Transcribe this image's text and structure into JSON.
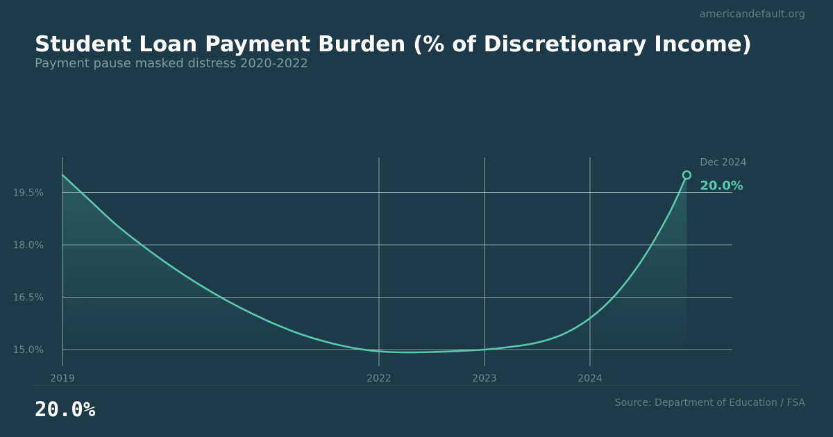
{
  "header": {
    "site": "americandefault.org",
    "title": "Student Loan Payment Burden (% of Discretionary Income)",
    "subtitle": "Payment pause masked distress 2020-2022"
  },
  "footer": {
    "big_value": "20.0%",
    "source": "Source: Department of Education / FSA"
  },
  "colors": {
    "background": "#1c3a4a",
    "line": "#5cc9ad",
    "grid": "#c8d3d8",
    "tick": "#6c8893"
  },
  "chart_data": {
    "type": "area",
    "title": "Student Loan Payment Burden (% of Discretionary Income)",
    "subtitle": "Payment pause masked distress 2020-2022",
    "xlabel": "",
    "ylabel": "",
    "xlim": [
      "2019-01",
      "2025-05"
    ],
    "ylim": [
      14.5,
      20.5
    ],
    "y_ticks": [
      {
        "value": 15.0,
        "label": "15.0%"
      },
      {
        "value": 16.5,
        "label": "16.5%"
      },
      {
        "value": 18.0,
        "label": "18.0%"
      },
      {
        "value": 19.5,
        "label": "19.5%"
      }
    ],
    "x_ticks": [
      {
        "value": 2019.0,
        "label": "2019"
      },
      {
        "value": 2022.0,
        "label": "2022"
      },
      {
        "value": 2023.0,
        "label": "2023"
      },
      {
        "value": 2024.0,
        "label": "2024"
      }
    ],
    "grid": true,
    "x": [
      2019.0,
      2019.25,
      2019.5,
      2019.75,
      2020.0,
      2020.25,
      2020.5,
      2020.75,
      2021.0,
      2021.25,
      2021.5,
      2021.75,
      2022.0,
      2022.25,
      2022.5,
      2022.75,
      2023.0,
      2023.25,
      2023.5,
      2023.75,
      2024.0,
      2024.25,
      2024.5,
      2024.75,
      2024.917
    ],
    "values": [
      20.0,
      19.3,
      18.6,
      18.0,
      17.45,
      16.95,
      16.5,
      16.1,
      15.75,
      15.45,
      15.22,
      15.05,
      14.95,
      14.92,
      14.93,
      14.96,
      15.0,
      15.08,
      15.2,
      15.45,
      15.9,
      16.6,
      17.6,
      18.9,
      20.0
    ],
    "annotation": {
      "date_label": "Dec 2024",
      "value_label": "20.0%",
      "x": 2024.917,
      "y": 20.0
    }
  }
}
